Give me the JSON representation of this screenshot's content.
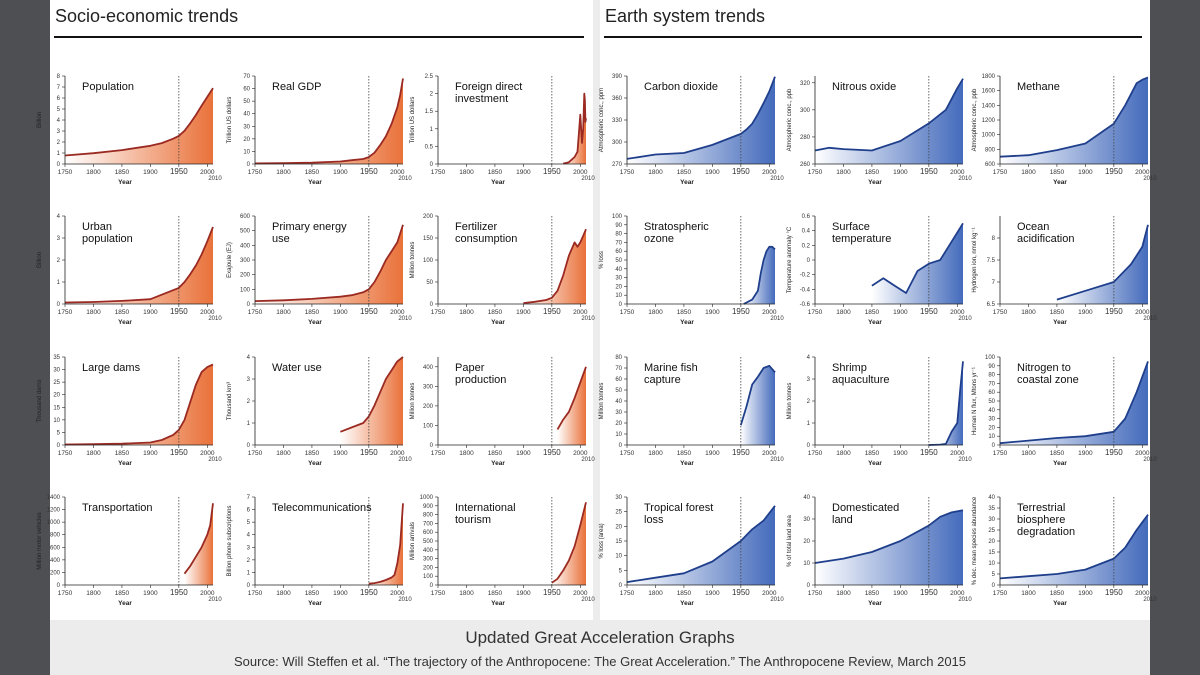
{
  "page": {
    "left_title": "Socio-economic trends",
    "right_title": "Earth system trends",
    "caption_title": "Updated Great Acceleration Graphs",
    "caption_source": "Source: Will Steffen et al. “The trajectory of the Anthropocene: The Great Acceleration.” The Anthropocene Review, March 2015"
  },
  "colors": {
    "socio_line": "#9a2a22",
    "socio_fill": "#e86a30",
    "earth_line": "#1f3f8c",
    "earth_fill": "#3a63b8"
  },
  "chart_data": [
    {
      "panel": "socio",
      "type": "area",
      "title": "Population",
      "xlabel": "Year",
      "ylabel": "Billion",
      "ylim": [
        0,
        8
      ],
      "yticks": [
        0,
        1,
        2,
        3,
        4,
        5,
        6,
        7,
        8
      ],
      "x": [
        1750,
        1800,
        1850,
        1900,
        1920,
        1940,
        1950,
        1960,
        1970,
        1980,
        1990,
        2000,
        2010
      ],
      "values": [
        0.77,
        0.98,
        1.26,
        1.65,
        1.9,
        2.3,
        2.55,
        3.02,
        3.7,
        4.45,
        5.3,
        6.1,
        6.9
      ]
    },
    {
      "panel": "socio",
      "type": "area",
      "title": "Real GDP",
      "xlabel": "Year",
      "ylabel": "Trillion US dollars",
      "ylim": [
        0,
        70
      ],
      "yticks": [
        0,
        10,
        20,
        30,
        40,
        50,
        60,
        70
      ],
      "x": [
        1750,
        1800,
        1850,
        1900,
        1920,
        1940,
        1950,
        1960,
        1970,
        1980,
        1990,
        2000,
        2005,
        2010
      ],
      "values": [
        0.5,
        0.7,
        1.0,
        2.0,
        3.0,
        4.0,
        5.5,
        9,
        15,
        22,
        32,
        45,
        55,
        68
      ]
    },
    {
      "panel": "socio",
      "type": "area",
      "title": "Foreign direct investment",
      "xlabel": "Year",
      "ylabel": "Trillion US dollars",
      "ylim": [
        0,
        2.5
      ],
      "yticks": [
        0,
        0.5,
        1.0,
        1.5,
        2.0,
        2.5
      ],
      "x": [
        1970,
        1980,
        1990,
        1995,
        2000,
        2003,
        2005,
        2007,
        2008,
        2009,
        2010
      ],
      "values": [
        0.01,
        0.05,
        0.2,
        0.35,
        1.4,
        0.6,
        1.0,
        2.0,
        1.8,
        1.2,
        1.3
      ]
    },
    {
      "panel": "socio",
      "type": "area",
      "title": "Urban population",
      "xlabel": "Year",
      "ylabel": "Billion",
      "ylim": [
        0,
        4
      ],
      "yticks": [
        0,
        1,
        2,
        3,
        4
      ],
      "x": [
        1750,
        1800,
        1850,
        1900,
        1950,
        1960,
        1970,
        1980,
        1990,
        2000,
        2010
      ],
      "values": [
        0.07,
        0.09,
        0.14,
        0.22,
        0.73,
        1.0,
        1.35,
        1.75,
        2.25,
        2.85,
        3.5
      ]
    },
    {
      "panel": "socio",
      "type": "area",
      "title": "Primary energy use",
      "xlabel": "Year",
      "ylabel": "Exajoule (EJ)",
      "ylim": [
        0,
        600
      ],
      "yticks": [
        0,
        100,
        200,
        300,
        400,
        500,
        600
      ],
      "x": [
        1750,
        1800,
        1850,
        1900,
        1920,
        1940,
        1950,
        1960,
        1970,
        1980,
        1990,
        2000,
        2010
      ],
      "values": [
        20,
        25,
        35,
        50,
        60,
        80,
        100,
        150,
        220,
        300,
        360,
        420,
        540
      ]
    },
    {
      "panel": "socio",
      "type": "area",
      "title": "Fertilizer consumption",
      "xlabel": "Year",
      "ylabel": "Million tonnes",
      "ylim": [
        0,
        200
      ],
      "yticks": [
        0,
        50,
        100,
        150,
        200
      ],
      "x": [
        1900,
        1920,
        1940,
        1950,
        1960,
        1970,
        1980,
        1990,
        1995,
        2000,
        2005,
        2010
      ],
      "values": [
        2,
        5,
        9,
        14,
        30,
        65,
        110,
        140,
        130,
        140,
        155,
        170
      ]
    },
    {
      "panel": "socio",
      "type": "area",
      "title": "Large dams",
      "xlabel": "Year",
      "ylabel": "Thousand dams",
      "ylim": [
        0,
        35
      ],
      "yticks": [
        0,
        5,
        10,
        15,
        20,
        25,
        30,
        35
      ],
      "x": [
        1750,
        1800,
        1850,
        1900,
        1920,
        1940,
        1950,
        1960,
        1970,
        1980,
        1990,
        2000,
        2010
      ],
      "values": [
        0.2,
        0.3,
        0.5,
        1.0,
        2.0,
        4.0,
        6.0,
        10,
        17,
        24,
        29,
        31,
        32
      ]
    },
    {
      "panel": "socio",
      "type": "area",
      "title": "Water use",
      "xlabel": "Year",
      "ylabel": "Thousand km³",
      "ylim": [
        0,
        4
      ],
      "yticks": [
        0,
        1,
        2,
        3,
        4
      ],
      "x": [
        1900,
        1920,
        1940,
        1950,
        1960,
        1970,
        1980,
        1990,
        2000,
        2010
      ],
      "values": [
        0.6,
        0.8,
        1.0,
        1.3,
        1.8,
        2.4,
        3.0,
        3.4,
        3.8,
        4.0
      ]
    },
    {
      "panel": "socio",
      "type": "area",
      "title": "Paper production",
      "xlabel": "Year",
      "ylabel": "Million tonnes",
      "ylim": [
        0,
        450
      ],
      "yticks": [
        0,
        100,
        200,
        300,
        400
      ],
      "x": [
        1960,
        1970,
        1980,
        1990,
        2000,
        2010
      ],
      "values": [
        80,
        130,
        170,
        240,
        320,
        400
      ]
    },
    {
      "panel": "socio",
      "type": "area",
      "title": "Transportation",
      "xlabel": "Year",
      "ylabel": "Million motor vehicles",
      "ylim": [
        0,
        1400
      ],
      "yticks": [
        0,
        200,
        400,
        600,
        800,
        1000,
        1200,
        1400
      ],
      "x": [
        1960,
        1970,
        1980,
        1990,
        2000,
        2005,
        2010
      ],
      "values": [
        180,
        300,
        450,
        600,
        800,
        950,
        1300
      ]
    },
    {
      "panel": "socio",
      "type": "area",
      "title": "Telecommunications",
      "xlabel": "Year",
      "ylabel": "Billion phone subscriptions",
      "ylim": [
        0,
        7
      ],
      "yticks": [
        0,
        1,
        2,
        3,
        4,
        5,
        6,
        7
      ],
      "x": [
        1950,
        1960,
        1970,
        1980,
        1990,
        1995,
        2000,
        2005,
        2010
      ],
      "values": [
        0.1,
        0.15,
        0.25,
        0.4,
        0.6,
        0.8,
        1.7,
        3.2,
        6.5
      ]
    },
    {
      "panel": "socio",
      "type": "area",
      "title": "International tourism",
      "xlabel": "Year",
      "ylabel": "Million arrivals",
      "ylim": [
        0,
        1000
      ],
      "yticks": [
        0,
        100,
        200,
        300,
        400,
        500,
        600,
        700,
        800,
        900,
        1000
      ],
      "x": [
        1950,
        1960,
        1970,
        1980,
        1990,
        2000,
        2010
      ],
      "values": [
        25,
        70,
        165,
        280,
        440,
        680,
        940
      ]
    },
    {
      "panel": "earth",
      "type": "area",
      "title": "Carbon dioxide",
      "xlabel": "Year",
      "ylabel": "Atmospheric conc., ppm",
      "ylim": [
        270,
        390
      ],
      "yticks": [
        270,
        300,
        330,
        360,
        390
      ],
      "x": [
        1750,
        1800,
        1850,
        1900,
        1950,
        1960,
        1970,
        1980,
        1990,
        2000,
        2010
      ],
      "values": [
        277,
        283,
        285,
        296,
        311,
        317,
        325,
        338,
        353,
        369,
        389
      ]
    },
    {
      "panel": "earth",
      "type": "area",
      "title": "Nitrous oxide",
      "xlabel": "Year",
      "ylabel": "Atmospheric conc., ppb",
      "ylim": [
        260,
        325
      ],
      "yticks": [
        260,
        280,
        300,
        320
      ],
      "x": [
        1750,
        1775,
        1800,
        1850,
        1900,
        1950,
        1980,
        2000,
        2010
      ],
      "values": [
        270,
        272,
        271,
        270,
        277,
        290,
        300,
        316,
        323
      ]
    },
    {
      "panel": "earth",
      "type": "area",
      "title": "Methane",
      "xlabel": "Year",
      "ylabel": "Atmospheric conc., ppb",
      "ylim": [
        600,
        1800
      ],
      "yticks": [
        600,
        800,
        1000,
        1200,
        1400,
        1600,
        1800
      ],
      "x": [
        1750,
        1800,
        1850,
        1900,
        1950,
        1970,
        1980,
        1990,
        2000,
        2010
      ],
      "values": [
        700,
        720,
        790,
        880,
        1150,
        1400,
        1550,
        1700,
        1750,
        1780
      ]
    },
    {
      "panel": "earth",
      "type": "area",
      "title": "Stratospheric ozone",
      "xlabel": "Year",
      "ylabel": "% loss",
      "ylim": [
        0,
        100
      ],
      "yticks": [
        0,
        10,
        20,
        30,
        40,
        50,
        60,
        70,
        80,
        90,
        100
      ],
      "x": [
        1955,
        1970,
        1980,
        1985,
        1990,
        1995,
        2000,
        2005,
        2010
      ],
      "values": [
        0,
        5,
        15,
        35,
        50,
        60,
        65,
        65,
        62
      ]
    },
    {
      "panel": "earth",
      "type": "area",
      "title": "Surface temperature",
      "xlabel": "Year",
      "ylabel": "Temperature anomaly °C",
      "ylim": [
        -0.6,
        0.6
      ],
      "yticks": [
        -0.6,
        -0.4,
        -0.2,
        0,
        0.2,
        0.4,
        0.6
      ],
      "x": [
        1850,
        1870,
        1890,
        1910,
        1930,
        1950,
        1970,
        1990,
        2010
      ],
      "values": [
        -0.35,
        -0.25,
        -0.35,
        -0.45,
        -0.15,
        -0.05,
        0.0,
        0.25,
        0.5
      ]
    },
    {
      "panel": "earth",
      "type": "area",
      "title": "Ocean acidification",
      "xlabel": "Year",
      "ylabel": "Hydrogen ion, nmol kg⁻¹",
      "ylim": [
        6.5,
        8.5
      ],
      "yticks": [
        6.5,
        7.0,
        7.5,
        8.0
      ],
      "x": [
        1850,
        1900,
        1950,
        1980,
        2000,
        2010
      ],
      "values": [
        6.6,
        6.8,
        7.0,
        7.4,
        7.8,
        8.3
      ]
    },
    {
      "panel": "earth",
      "type": "area",
      "title": "Marine fish capture",
      "xlabel": "Year",
      "ylabel": "Million tonnes",
      "ylim": [
        0,
        80
      ],
      "yticks": [
        0,
        10,
        20,
        30,
        40,
        50,
        60,
        70,
        80
      ],
      "x": [
        1950,
        1960,
        1970,
        1980,
        1990,
        2000,
        2010
      ],
      "values": [
        18,
        35,
        55,
        62,
        70,
        72,
        66
      ]
    },
    {
      "panel": "earth",
      "type": "area",
      "title": "Shrimp aquaculture",
      "xlabel": "Year",
      "ylabel": "Million tonnes",
      "ylim": [
        0,
        4
      ],
      "yticks": [
        0,
        1,
        2,
        3,
        4
      ],
      "x": [
        1950,
        1970,
        1980,
        1990,
        2000,
        2005,
        2010
      ],
      "values": [
        0,
        0.02,
        0.05,
        0.6,
        1.0,
        2.5,
        3.8
      ]
    },
    {
      "panel": "earth",
      "type": "area",
      "title": "Nitrogen to coastal zone",
      "xlabel": "Year",
      "ylabel": "Human N flux, Mtons yr⁻¹",
      "ylim": [
        0,
        100
      ],
      "yticks": [
        0,
        10,
        20,
        30,
        40,
        50,
        60,
        70,
        80,
        90,
        100
      ],
      "x": [
        1750,
        1800,
        1850,
        1900,
        1950,
        1970,
        1990,
        2010
      ],
      "values": [
        2,
        5,
        8,
        10,
        15,
        30,
        60,
        95
      ]
    },
    {
      "panel": "earth",
      "type": "area",
      "title": "Tropical forest loss",
      "xlabel": "Year",
      "ylabel": "% loss (area)",
      "ylim": [
        0,
        30
      ],
      "yticks": [
        0,
        5,
        10,
        15,
        20,
        25,
        30
      ],
      "x": [
        1750,
        1800,
        1850,
        1900,
        1950,
        1970,
        1990,
        2010
      ],
      "values": [
        1,
        2.5,
        4,
        8,
        15,
        19,
        22,
        27
      ]
    },
    {
      "panel": "earth",
      "type": "area",
      "title": "Domesticated land",
      "xlabel": "Year",
      "ylabel": "% of total land area",
      "ylim": [
        0,
        40
      ],
      "yticks": [
        0,
        10,
        20,
        30,
        40
      ],
      "x": [
        1750,
        1800,
        1850,
        1900,
        1950,
        1970,
        1990,
        2010
      ],
      "values": [
        10,
        12,
        15,
        20,
        27,
        31,
        33,
        34
      ]
    },
    {
      "panel": "earth",
      "type": "area",
      "title": "Terrestrial biosphere degradation",
      "xlabel": "Year",
      "ylabel": "% dec. mean species abundance",
      "ylim": [
        0,
        40
      ],
      "yticks": [
        0,
        5,
        10,
        15,
        20,
        25,
        30,
        35,
        40
      ],
      "x": [
        1750,
        1800,
        1850,
        1900,
        1950,
        1970,
        1990,
        2010
      ],
      "values": [
        3,
        4,
        5,
        7,
        12,
        17,
        25,
        32
      ]
    }
  ]
}
